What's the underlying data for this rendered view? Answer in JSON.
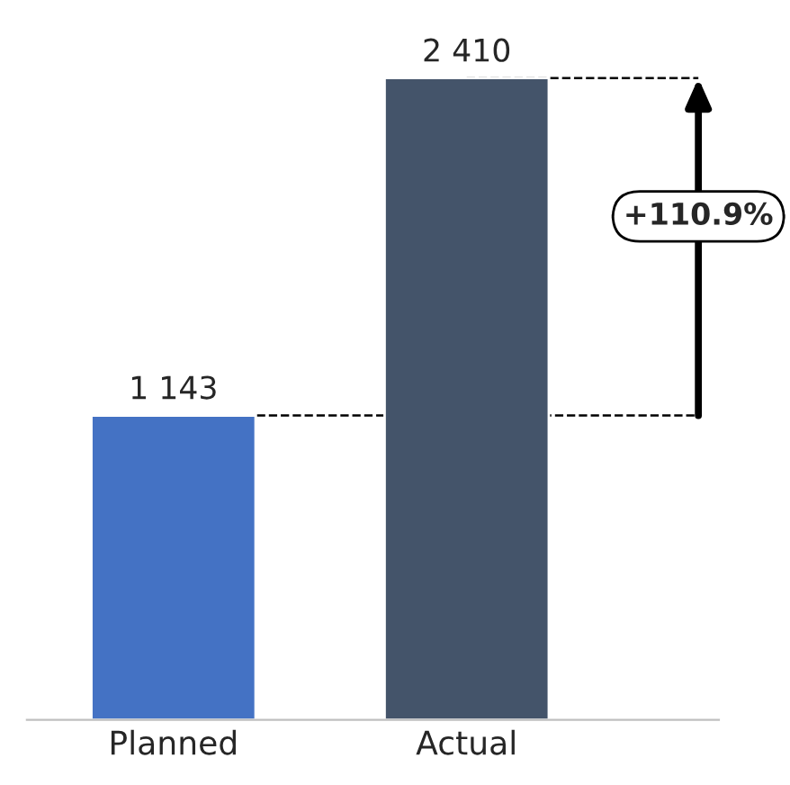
{
  "chart_data": {
    "type": "bar",
    "categories": [
      "Planned",
      "Actual"
    ],
    "values": [
      1143,
      2410
    ],
    "colors": [
      "#4472c4",
      "#44546a"
    ],
    "value_labels": [
      "1 143",
      "2 410"
    ],
    "ref_lines": [
      {
        "axis": "y",
        "value": 1143,
        "label": null,
        "color": "#000000",
        "line_style": "dashed"
      },
      {
        "axis": "y",
        "value": 2410,
        "label": null,
        "color": "#000000",
        "line_style": "dashed"
      }
    ],
    "annotations": [
      "+110.9%"
    ],
    "grid": false,
    "legend": false
  }
}
